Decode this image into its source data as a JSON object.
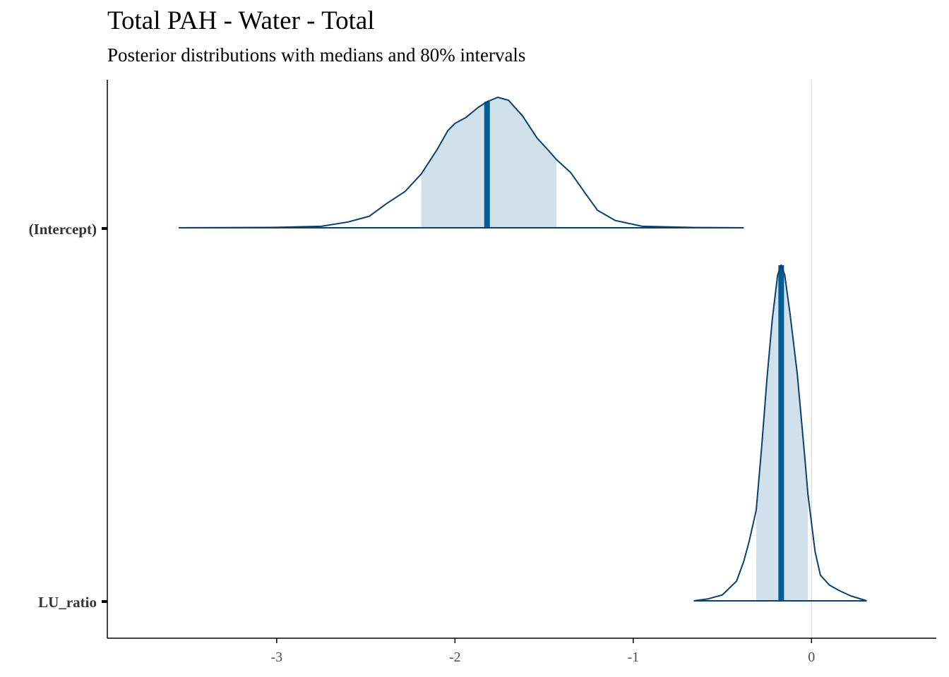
{
  "title": "Total PAH - Water - Total",
  "subtitle": "Posterior distributions with medians and 80% intervals",
  "colors": {
    "outline": "#0b3f6e",
    "interval_fill": "#d1e1ec",
    "median": "#005b96",
    "zero_line": "#e0e0e0",
    "axis": "#000000"
  },
  "chart_data": {
    "type": "area",
    "xlim": [
      -3.95,
      0.7
    ],
    "x_ticks": [
      -3,
      -2,
      -1,
      0
    ],
    "x_tick_labels": [
      "-3",
      "-2",
      "-1",
      "0"
    ],
    "vline_at": 0,
    "grid": false,
    "series": [
      {
        "name": "(Intercept)",
        "median": -1.82,
        "interval_80": [
          -2.19,
          -1.43
        ],
        "range": [
          -3.55,
          -0.38
        ],
        "density": [
          [
            -3.55,
            0.0
          ],
          [
            -3.0,
            0.003
          ],
          [
            -2.75,
            0.01
          ],
          [
            -2.6,
            0.04
          ],
          [
            -2.48,
            0.08
          ],
          [
            -2.38,
            0.17
          ],
          [
            -2.28,
            0.25
          ],
          [
            -2.19,
            0.37
          ],
          [
            -2.1,
            0.54
          ],
          [
            -2.04,
            0.67
          ],
          [
            -2.0,
            0.72
          ],
          [
            -1.94,
            0.76
          ],
          [
            -1.87,
            0.83
          ],
          [
            -1.82,
            0.87
          ],
          [
            -1.76,
            0.9
          ],
          [
            -1.7,
            0.88
          ],
          [
            -1.62,
            0.77
          ],
          [
            -1.54,
            0.62
          ],
          [
            -1.48,
            0.54
          ],
          [
            -1.43,
            0.47
          ],
          [
            -1.35,
            0.38
          ],
          [
            -1.27,
            0.24
          ],
          [
            -1.2,
            0.12
          ],
          [
            -1.1,
            0.05
          ],
          [
            -0.95,
            0.01
          ],
          [
            -0.65,
            0.002
          ],
          [
            -0.38,
            0.0
          ]
        ]
      },
      {
        "name": "LU_ratio",
        "median": -0.17,
        "interval_80": [
          -0.31,
          -0.02
        ],
        "range": [
          -0.66,
          0.31
        ],
        "density": [
          [
            -0.66,
            0.0
          ],
          [
            -0.58,
            0.02
          ],
          [
            -0.5,
            0.06
          ],
          [
            -0.42,
            0.2
          ],
          [
            -0.38,
            0.4
          ],
          [
            -0.35,
            0.6
          ],
          [
            -0.31,
            0.92
          ],
          [
            -0.28,
            1.55
          ],
          [
            -0.25,
            2.25
          ],
          [
            -0.22,
            2.85
          ],
          [
            -0.19,
            3.3
          ],
          [
            -0.17,
            3.4
          ],
          [
            -0.15,
            3.3
          ],
          [
            -0.12,
            2.9
          ],
          [
            -0.08,
            2.3
          ],
          [
            -0.04,
            1.5
          ],
          [
            -0.02,
            1.08
          ],
          [
            0.02,
            0.5
          ],
          [
            0.05,
            0.26
          ],
          [
            0.1,
            0.16
          ],
          [
            0.16,
            0.1
          ],
          [
            0.22,
            0.05
          ],
          [
            0.31,
            0.0
          ]
        ]
      }
    ]
  }
}
